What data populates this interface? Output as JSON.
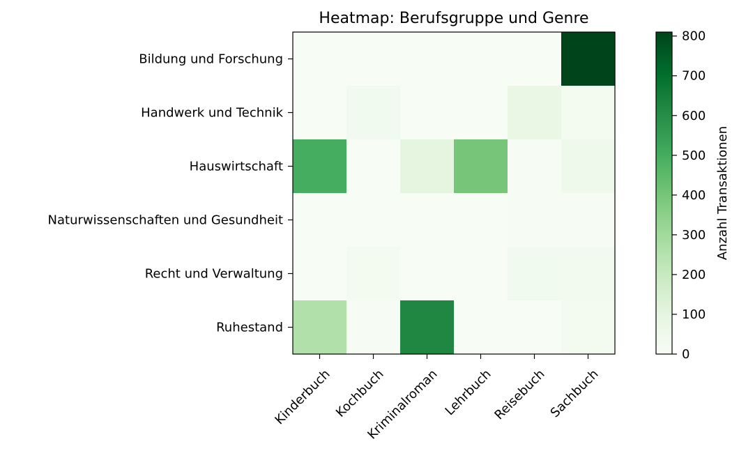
{
  "chart_data": {
    "type": "heatmap",
    "title": "Heatmap: Berufsgruppe und Genre",
    "columns": [
      "Kinderbuch",
      "Kochbuch",
      "Kriminalroman",
      "Lehrbuch",
      "Reisebuch",
      "Sachbuch"
    ],
    "rows": [
      "Bildung und Forschung",
      "Handwerk und Technik",
      "Hauswirtschaft",
      "Naturwissenschaften und Gesundheit",
      "Recht und Verwaltung",
      "Ruhestand"
    ],
    "values": [
      [
        0,
        0,
        0,
        0,
        0,
        810
      ],
      [
        0,
        35,
        0,
        0,
        75,
        25
      ],
      [
        500,
        0,
        100,
        400,
        5,
        50
      ],
      [
        0,
        0,
        0,
        0,
        5,
        5
      ],
      [
        0,
        25,
        0,
        0,
        35,
        30
      ],
      [
        260,
        5,
        620,
        0,
        0,
        20
      ]
    ],
    "colorbar": {
      "label": "Anzahl Transaktionen",
      "range": [
        0,
        810
      ],
      "ticks": [
        "0",
        "100",
        "200",
        "300",
        "400",
        "500",
        "600",
        "700",
        "800"
      ],
      "colormap": "Greens",
      "colors": [
        "#f7fcf5",
        "#e5f5e0",
        "#c7e9c0",
        "#a1d99b",
        "#74c476",
        "#41ab5d",
        "#238b45",
        "#006d2c",
        "#00441b"
      ]
    }
  }
}
